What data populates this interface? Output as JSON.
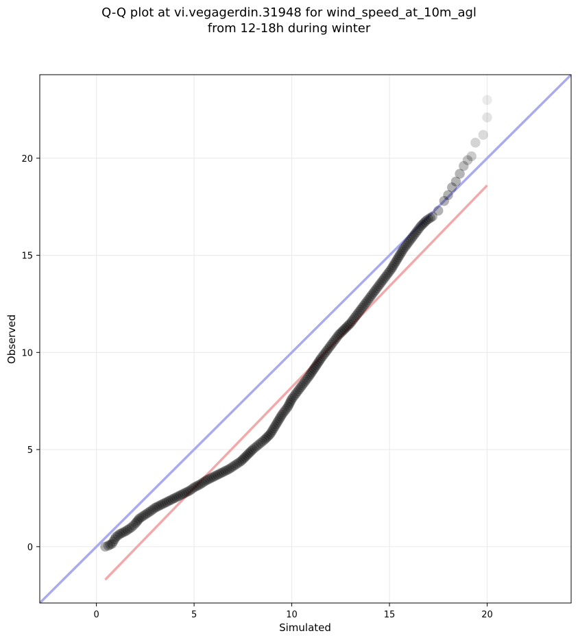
{
  "chart_data": {
    "type": "scatter",
    "title_line1": "Q-Q plot at vi.vegagerdin.31948 for wind_speed_at_10m_agl",
    "title_line2": "from 12-18h during winter",
    "xlabel": "Simulated",
    "ylabel": "Observed",
    "xlim": [
      -2.9,
      24.3
    ],
    "ylim": [
      -2.9,
      24.3
    ],
    "xticks": [
      0,
      5,
      10,
      15,
      20
    ],
    "yticks": [
      0,
      5,
      10,
      15,
      20
    ],
    "grid": true,
    "reference_line": {
      "color": "#aaaaf0",
      "x": [
        -2.9,
        24.3
      ],
      "y": [
        -2.9,
        24.3
      ]
    },
    "fit_line": {
      "color": "#f2a9a9",
      "x": [
        0.45,
        20.0
      ],
      "y": [
        -1.7,
        18.6
      ]
    },
    "point_color": "#000000",
    "points": {
      "x": [
        0.45,
        0.6,
        0.8,
        1.0,
        1.2,
        1.5,
        1.8,
        2.0,
        2.2,
        2.5,
        2.8,
        3.0,
        3.3,
        3.6,
        3.9,
        4.2,
        4.5,
        4.8,
        5.0,
        5.3,
        5.6,
        5.9,
        6.2,
        6.5,
        6.8,
        7.1,
        7.4,
        7.7,
        8.0,
        8.3,
        8.6,
        8.9,
        9.2,
        9.5,
        9.8,
        10.0,
        10.3,
        10.6,
        10.9,
        11.2,
        11.5,
        11.8,
        12.1,
        12.4,
        12.7,
        13.0,
        13.3,
        13.6,
        13.9,
        14.2,
        14.5,
        14.8,
        15.1,
        15.4,
        15.7,
        16.0,
        16.3,
        16.6,
        16.9,
        17.2,
        17.5,
        17.8,
        18.0,
        18.2,
        18.4,
        18.6,
        18.8,
        19.0,
        19.2,
        19.4,
        19.8,
        20.0,
        20.0
      ],
      "y": [
        0.0,
        0.05,
        0.15,
        0.5,
        0.65,
        0.8,
        1.0,
        1.2,
        1.45,
        1.65,
        1.85,
        2.0,
        2.15,
        2.3,
        2.45,
        2.6,
        2.75,
        2.9,
        3.05,
        3.2,
        3.4,
        3.55,
        3.7,
        3.85,
        4.0,
        4.2,
        4.4,
        4.7,
        5.0,
        5.25,
        5.5,
        5.8,
        6.3,
        6.8,
        7.2,
        7.6,
        8.0,
        8.4,
        8.8,
        9.25,
        9.7,
        10.1,
        10.5,
        10.9,
        11.2,
        11.5,
        11.9,
        12.3,
        12.7,
        13.1,
        13.5,
        13.9,
        14.3,
        14.8,
        15.3,
        15.7,
        16.1,
        16.5,
        16.8,
        17.0,
        17.3,
        17.8,
        18.1,
        18.5,
        18.8,
        19.2,
        19.6,
        19.9,
        20.1,
        20.8,
        21.2,
        22.1,
        23.0
      ]
    }
  }
}
